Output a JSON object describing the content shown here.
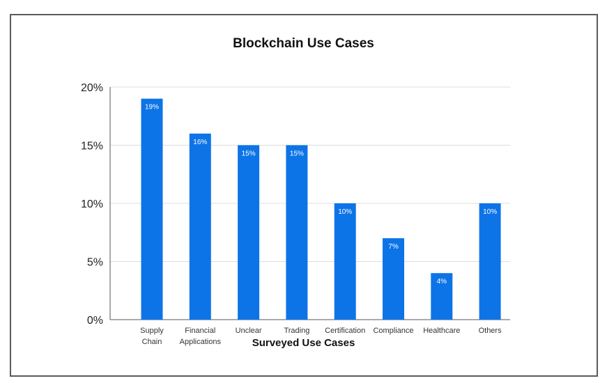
{
  "chart_data": {
    "type": "bar",
    "title": "Blockchain Use Cases",
    "xlabel": "Surveyed Use Cases",
    "ylabel": "",
    "categories": [
      [
        "Supply",
        "Chain"
      ],
      [
        "Financial",
        "Applications"
      ],
      [
        "Unclear"
      ],
      [
        "Trading"
      ],
      [
        "Certification"
      ],
      [
        "Compliance"
      ],
      [
        "Healthcare"
      ],
      [
        "Others"
      ]
    ],
    "values": [
      19,
      16,
      15,
      15,
      10,
      7,
      4,
      10
    ],
    "data_labels": [
      "19%",
      "16%",
      "15%",
      "15%",
      "10%",
      "7%",
      "4%",
      "10%"
    ],
    "y_ticks": [
      0,
      5,
      10,
      15,
      20
    ],
    "y_tick_labels": [
      "0%",
      "5%",
      "10%",
      "15%",
      "20%"
    ],
    "ylim": [
      0,
      20
    ],
    "grid": true,
    "legend": "none",
    "bar_color": "#0d74e7",
    "grid_color": "#dcdcdc",
    "axis_color": "#555555"
  }
}
